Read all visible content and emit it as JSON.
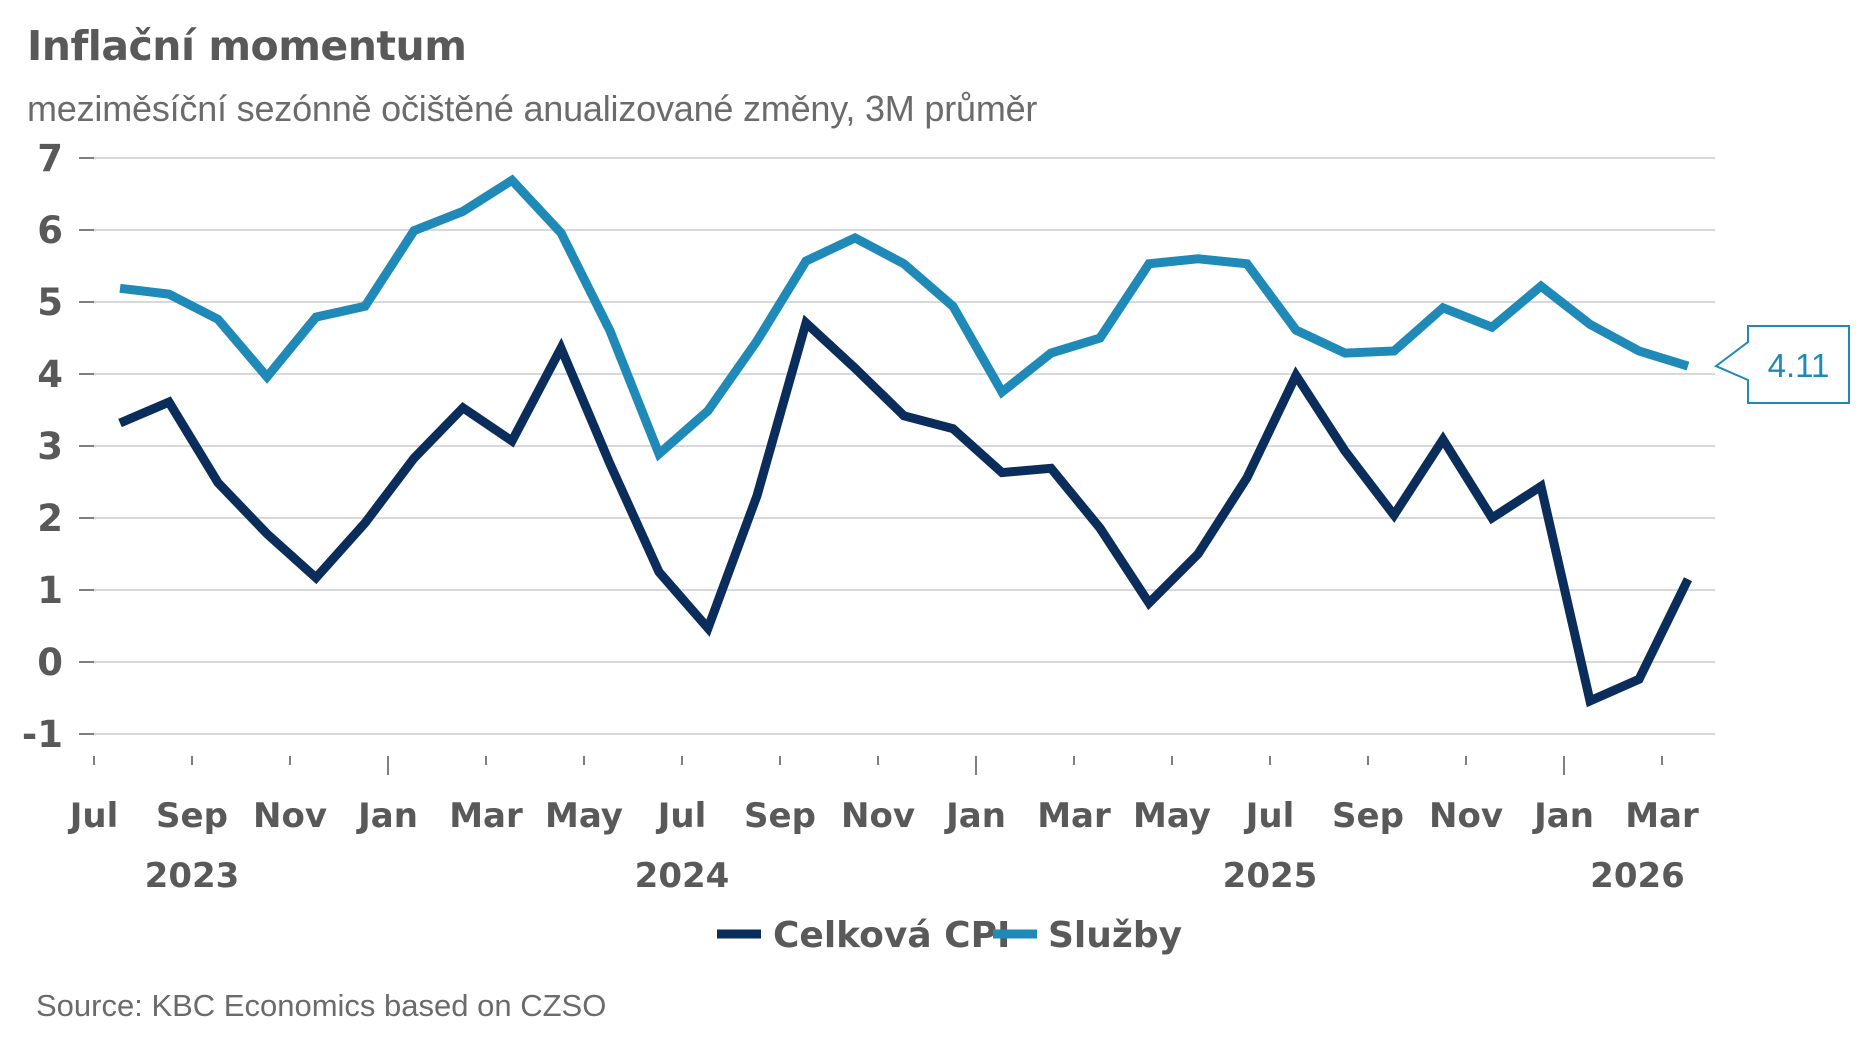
{
  "header": {
    "title": "Inflační momentum",
    "subtitle": "meziměsíční sezónně očištěné anualizované změny, 3M průměr"
  },
  "footer": {
    "source": "Source: KBC Economics based on CZSO"
  },
  "chart_data": {
    "type": "line",
    "title": "Inflační momentum",
    "subtitle": "meziměsíční sezónně očištěné anualizované změny, 3M průměr",
    "xlabel": "",
    "ylabel": "",
    "ylim": [
      -1,
      7
    ],
    "yticks": [
      "7",
      "6",
      "5",
      "4",
      "3",
      "2",
      "1",
      "0",
      "-1"
    ],
    "ytick_values": [
      7,
      6,
      5,
      4,
      3,
      2,
      1,
      0,
      -1
    ],
    "grid": true,
    "legend_position": "bottom-center",
    "x": [
      "2023-07",
      "2023-08",
      "2023-09",
      "2023-10",
      "2023-11",
      "2023-12",
      "2024-01",
      "2024-02",
      "2024-03",
      "2024-04",
      "2024-05",
      "2024-06",
      "2024-07",
      "2024-08",
      "2024-09",
      "2024-10",
      "2024-11",
      "2024-12",
      "2025-01",
      "2025-02",
      "2025-03",
      "2025-04",
      "2025-05",
      "2025-06",
      "2025-07",
      "2025-08",
      "2025-09",
      "2025-10",
      "2025-11",
      "2025-12",
      "2026-01",
      "2026-02",
      "2026-03"
    ],
    "xtick_labels": [
      {
        "label": "Jul",
        "month_index": 0
      },
      {
        "label": "Sep",
        "month_index": 2
      },
      {
        "label": "Nov",
        "month_index": 4
      },
      {
        "label": "Jan",
        "month_index": 6,
        "major": true
      },
      {
        "label": "Mar",
        "month_index": 8
      },
      {
        "label": "May",
        "month_index": 10
      },
      {
        "label": "Jul",
        "month_index": 12
      },
      {
        "label": "Sep",
        "month_index": 14
      },
      {
        "label": "Nov",
        "month_index": 16
      },
      {
        "label": "Jan",
        "month_index": 18,
        "major": true
      },
      {
        "label": "Mar",
        "month_index": 20
      },
      {
        "label": "May",
        "month_index": 22
      },
      {
        "label": "Jul",
        "month_index": 24
      },
      {
        "label": "Sep",
        "month_index": 26
      },
      {
        "label": "Nov",
        "month_index": 28
      },
      {
        "label": "Jan",
        "month_index": 30,
        "major": true
      },
      {
        "label": "Mar",
        "month_index": 32
      }
    ],
    "year_labels": [
      {
        "label": "2023",
        "month_index": 2
      },
      {
        "label": "2024",
        "month_index": 12
      },
      {
        "label": "2025",
        "month_index": 24
      },
      {
        "label": "2026",
        "month_index": 31.5
      }
    ],
    "series": [
      {
        "name": "Celková CPI",
        "color": "#0b2d5b",
        "values": [
          3.32,
          3.61,
          2.49,
          1.78,
          1.17,
          1.93,
          2.83,
          3.53,
          3.07,
          4.36,
          2.75,
          1.25,
          0.47,
          2.31,
          4.71,
          4.08,
          3.42,
          3.24,
          2.63,
          2.69,
          1.86,
          0.82,
          1.5,
          2.56,
          3.98,
          2.93,
          2.04,
          3.09,
          2.0,
          2.44,
          -0.54,
          -0.24,
          1.15
        ]
      },
      {
        "name": "Služby",
        "color": "#1f8ab8",
        "values": [
          5.19,
          5.11,
          4.76,
          3.96,
          4.79,
          4.94,
          5.99,
          6.26,
          6.69,
          5.96,
          4.6,
          2.89,
          3.49,
          4.46,
          5.57,
          5.89,
          5.53,
          4.94,
          3.75,
          4.29,
          4.5,
          5.53,
          5.6,
          5.53,
          4.61,
          4.29,
          4.32,
          4.92,
          4.65,
          5.22,
          4.69,
          4.32,
          4.11
        ]
      }
    ],
    "annotations": [
      {
        "series": "Služby",
        "month_index": 32,
        "text": "4.11"
      }
    ],
    "colors": {
      "text": "#595959",
      "grid": "#d9d9d9",
      "axis_tick": "#7f7f7f"
    }
  }
}
